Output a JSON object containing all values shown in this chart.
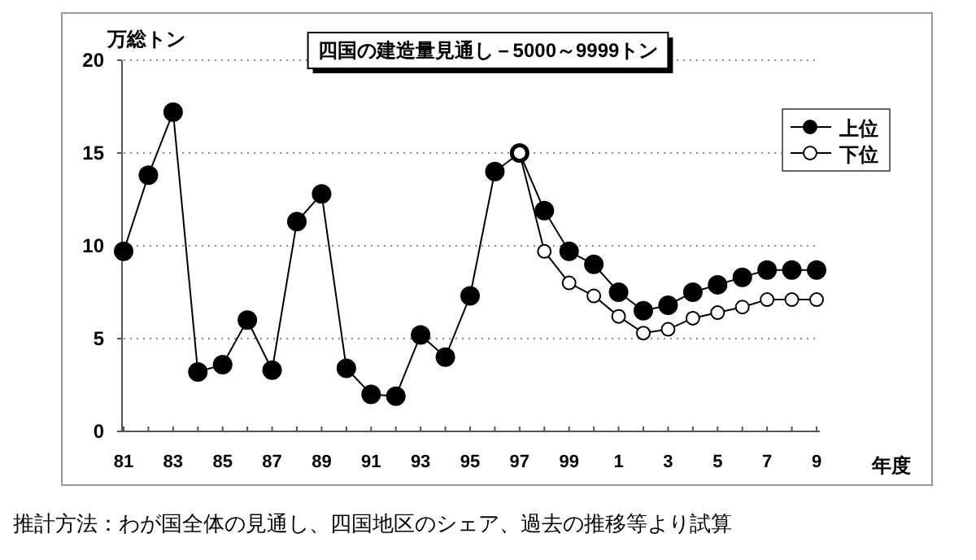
{
  "chart_data": {
    "type": "line",
    "title": "四国の建造量見通し－5000～9999トン",
    "ylabel": "万総トン",
    "xlabel": "年度",
    "annotations": [
      "推計方法：わが国全体の見通し、四国地区のシェア、過去の推移等より試算"
    ],
    "categories": [
      "81",
      null,
      "83",
      null,
      "85",
      null,
      "87",
      null,
      "89",
      null,
      "91",
      null,
      "93",
      null,
      "95",
      null,
      "97",
      null,
      "99",
      null,
      "1",
      null,
      "3",
      null,
      "5",
      null,
      "7",
      null,
      "9"
    ],
    "series": [
      {
        "name": "上位",
        "color": "#000000",
        "values": [
          9.7,
          13.8,
          17.2,
          3.2,
          3.6,
          6.0,
          3.3,
          11.3,
          12.8,
          3.4,
          2.0,
          1.9,
          5.2,
          4.0,
          7.3,
          14.0,
          15.0,
          11.9,
          9.7,
          9.0,
          7.5,
          6.5,
          6.8,
          7.5,
          7.9,
          8.3,
          8.7,
          8.7,
          8.7
        ]
      },
      {
        "name": "下位",
        "color": "#ffffff",
        "values": [
          null,
          null,
          null,
          null,
          null,
          null,
          null,
          null,
          null,
          null,
          null,
          null,
          null,
          null,
          null,
          null,
          15.0,
          9.7,
          8.0,
          7.3,
          6.2,
          5.3,
          5.5,
          6.1,
          6.4,
          6.7,
          7.1,
          7.1,
          7.1
        ]
      }
    ],
    "ylim": [
      0,
      20
    ],
    "yticks": [
      0,
      5,
      10,
      15,
      20
    ],
    "grid": "y",
    "legend": "top right",
    "marker": "circle",
    "line_style": "solid"
  }
}
